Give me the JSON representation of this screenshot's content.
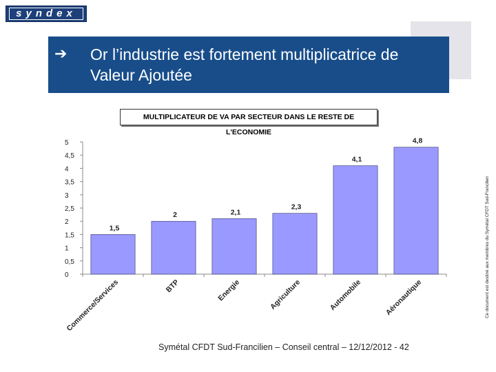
{
  "brand": {
    "logo_text": "syndex"
  },
  "slide": {
    "arrow_icon": "right-arrow-icon",
    "title": "Or l’industrie est fortement multiplicatrice de Valeur Ajoutée",
    "side_note": "Ce document est destiné aux membres du Symétal CFDT Sud-Francilien",
    "footer": "Symétal CFDT Sud-Francilien – Conseil central – 12/12/2012 - 42"
  },
  "chart_data": {
    "type": "bar",
    "title": "MULTIPLICATEUR DE VA PAR SECTEUR DANS LE RESTE DE L'ECONOMIE",
    "categories": [
      "Commerce/Services",
      "BTP",
      "Energie",
      "Agriculture",
      "Automobile",
      "Aéronautique"
    ],
    "values": [
      1.5,
      2,
      2.1,
      2.3,
      4.1,
      4.8
    ],
    "value_labels": [
      "1,5",
      "2",
      "2,1",
      "2,3",
      "4,1",
      "4,8"
    ],
    "ylim": [
      0,
      5
    ],
    "ytick_values": [
      0,
      0.5,
      1,
      1.5,
      2,
      2.5,
      3,
      3.5,
      4,
      4.5,
      5
    ],
    "ytick_labels": [
      "0",
      "0,5",
      "1",
      "1,5",
      "2",
      "2,5",
      "3",
      "3,5",
      "4",
      "4,5",
      "5"
    ],
    "xlabel": "",
    "ylabel": "",
    "grid": false,
    "legend": "none",
    "colors": {
      "bar_fill": "#9999ff",
      "bar_stroke": "#333366",
      "axis": "#888888"
    }
  }
}
